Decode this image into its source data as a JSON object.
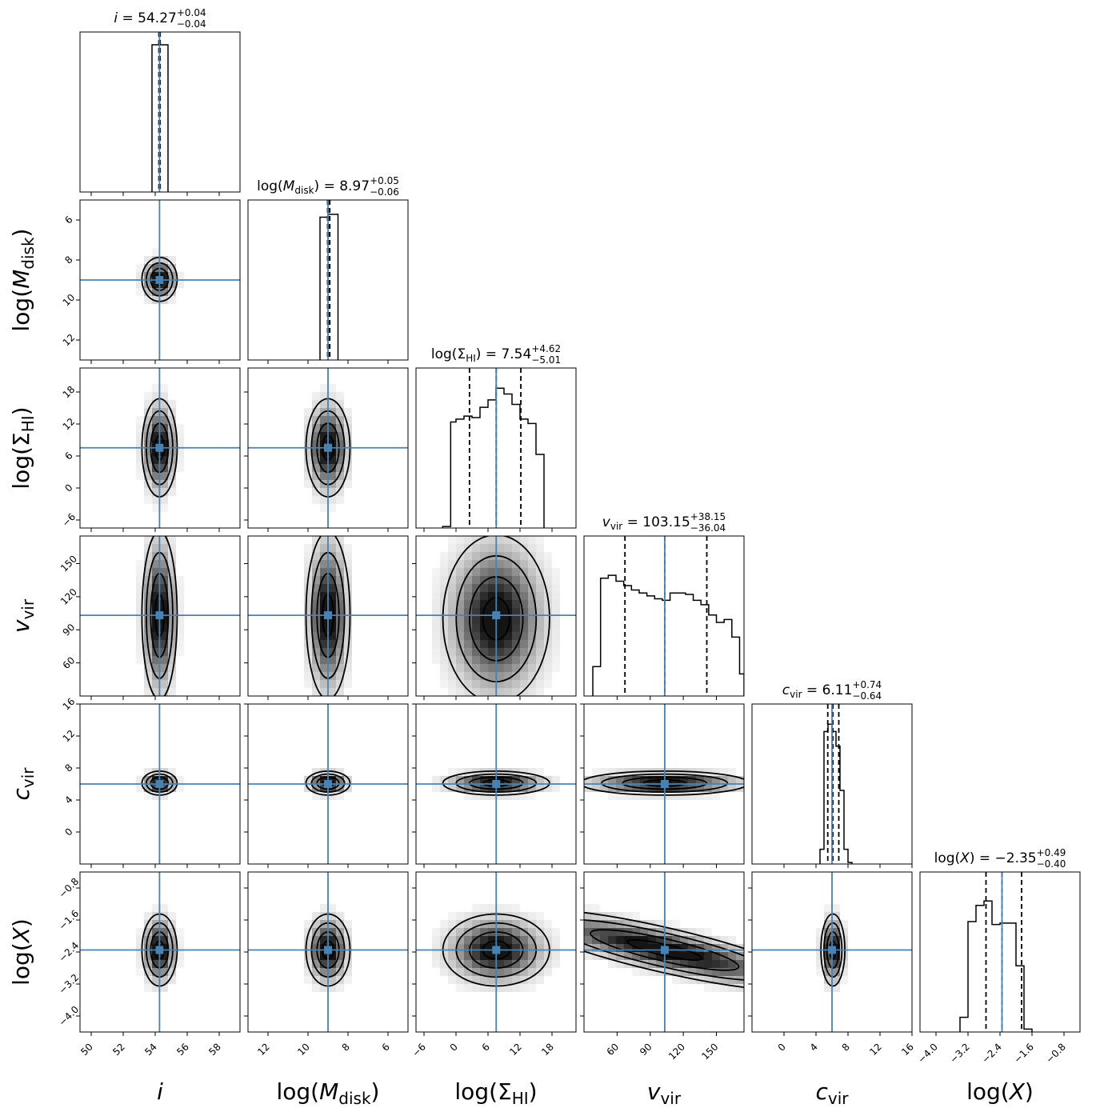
{
  "chart_data": {
    "type": "corner",
    "params": [
      {
        "key": "i",
        "axis_label": "i",
        "axis_sub": "",
        "axis_sym": "i",
        "sym_style": "italic",
        "title_sym": "i",
        "title_sub": "",
        "title_value": "54.27",
        "title_plus": "+0.04",
        "title_minus": "−0.04",
        "range": [
          49.3,
          59.3
        ],
        "ticks": [
          50,
          52,
          54,
          56,
          58
        ],
        "tick_labels": [
          "50",
          "52",
          "54",
          "56",
          "58"
        ],
        "truth": 54.27,
        "q16": 54.23,
        "q50": 54.27,
        "q84": 54.31
      },
      {
        "key": "log_mdisk",
        "axis_label": "log(M_disk)",
        "axis_pre": "log(",
        "axis_sym": "M",
        "axis_sub": "disk",
        "axis_post": ")",
        "sym_style": "italic",
        "title_pre": "log(",
        "title_sym": "M",
        "title_sub": "disk",
        "title_post": ")",
        "title_value": "8.97",
        "title_plus": "+0.05",
        "title_minus": "−0.06",
        "range": [
          13.0,
          5.0
        ],
        "ticks": [
          12,
          10,
          8,
          6
        ],
        "tick_labels": [
          "12",
          "10",
          "8",
          "6"
        ],
        "truth": 9.0,
        "q16": 8.91,
        "q50": 8.97,
        "q84": 9.02
      },
      {
        "key": "log_sigma_hi",
        "axis_label": "log(Σ_HI)",
        "axis_pre": "log(",
        "axis_sym": "Σ",
        "axis_sub": "HI",
        "axis_post": ")",
        "sym_style": "normal",
        "title_pre": "log(",
        "title_sym": "Σ",
        "title_sub": "HI",
        "title_post": ")",
        "title_value": "7.54",
        "title_plus": "+4.62",
        "title_minus": "−5.01",
        "range": [
          -7.5,
          22.5
        ],
        "ticks": [
          -6,
          0,
          6,
          12,
          18
        ],
        "tick_labels": [
          "−6",
          "0",
          "6",
          "12",
          "18"
        ],
        "truth": 7.54,
        "q16": 2.53,
        "q50": 7.54,
        "q84": 12.16
      },
      {
        "key": "v_vir",
        "axis_label": "v_vir",
        "axis_pre": "",
        "axis_sym": "v",
        "axis_sub": "vir",
        "axis_post": "",
        "sym_style": "italic",
        "title_pre": "",
        "title_sym": "v",
        "title_sub": "vir",
        "title_post": "",
        "title_value": "103.15",
        "title_plus": "+38.15",
        "title_minus": "−36.04",
        "range": [
          30,
          175
        ],
        "ticks": [
          60,
          90,
          120,
          150
        ],
        "tick_labels": [
          "60",
          "90",
          "120",
          "150"
        ],
        "truth": 103.15,
        "q16": 67.11,
        "q50": 103.15,
        "q84": 141.3
      },
      {
        "key": "c_vir",
        "axis_label": "c_vir",
        "axis_pre": "",
        "axis_sym": "c",
        "axis_sub": "vir",
        "axis_post": "",
        "sym_style": "italic",
        "title_pre": "",
        "title_sym": "c",
        "title_sub": "vir",
        "title_post": "",
        "title_value": "6.11",
        "title_plus": "+0.74",
        "title_minus": "−0.64",
        "range": [
          -4,
          16
        ],
        "ticks": [
          0,
          4,
          8,
          12,
          16
        ],
        "tick_labels": [
          "0",
          "4",
          "8",
          "12",
          "16"
        ],
        "truth": 6.0,
        "q16": 5.47,
        "q50": 6.11,
        "q84": 6.85
      },
      {
        "key": "log_x",
        "axis_label": "log(X)",
        "axis_pre": "log(",
        "axis_sym": "X",
        "axis_sub": "",
        "axis_post": ")",
        "sym_style": "italic",
        "title_pre": "log(",
        "title_sym": "X",
        "title_sub": "",
        "title_post": ")",
        "title_value": "−2.35",
        "title_plus": "+0.49",
        "title_minus": "−0.40",
        "range": [
          -4.4,
          -0.4
        ],
        "ticks": [
          -4.0,
          -3.2,
          -2.4,
          -1.6,
          -0.8
        ],
        "tick_labels": [
          "−4.0",
          "−3.2",
          "−2.4",
          "−1.6",
          "−0.8"
        ],
        "truth": -2.35,
        "q16": -2.75,
        "q50": -2.35,
        "q84": -1.86
      }
    ],
    "histograms": {
      "i": {
        "bins": [
          53.8,
          54.8
        ],
        "counts": [
          1.0
        ],
        "fill_box": true
      },
      "log_mdisk": {
        "bins": [
          9.4,
          9.0,
          8.5
        ],
        "counts": [
          0.97,
          0.99
        ],
        "fill_box": false
      },
      "log_sigma_hi": {
        "bins": [
          -2.5,
          -1,
          0,
          1.5,
          3,
          4.5,
          6,
          7.5,
          9,
          10.5,
          12,
          13.5,
          15.0,
          16.5
        ],
        "counts": [
          0.01,
          0.72,
          0.74,
          0.76,
          0.75,
          0.82,
          0.87,
          0.95,
          0.91,
          0.84,
          0.74,
          0.71,
          0.5
        ]
      },
      "v_vir": {
        "bins": [
          38,
          45,
          52,
          59,
          66,
          73,
          80,
          87,
          94,
          101,
          108,
          115,
          122,
          129,
          136,
          143,
          150,
          157,
          164,
          171,
          175
        ],
        "counts": [
          0.2,
          0.8,
          0.82,
          0.78,
          0.75,
          0.72,
          0.7,
          0.68,
          0.66,
          0.65,
          0.7,
          0.7,
          0.69,
          0.65,
          0.62,
          0.55,
          0.5,
          0.52,
          0.4,
          0.15
        ]
      },
      "c_vir": {
        "bins": [
          4.5,
          5.0,
          5.5,
          6.0,
          6.5,
          7.0,
          7.5,
          8.0,
          8.5
        ],
        "counts": [
          0.1,
          0.9,
          0.95,
          0.9,
          0.8,
          0.5,
          0.1,
          0.01
        ]
      },
      "log_x": {
        "bins": [
          -3.4,
          -3.2,
          -3.0,
          -2.8,
          -2.6,
          -2.4,
          -2.2,
          -2.0,
          -1.8,
          -1.6
        ],
        "counts": [
          0.1,
          0.75,
          0.86,
          0.89,
          0.73,
          0.74,
          0.74,
          0.45,
          0.02
        ]
      }
    },
    "blobs": [
      {
        "row": 1,
        "col": 0,
        "cx": 54.27,
        "cy": 8.97,
        "sx": 0.55,
        "sy": 0.55,
        "rot": 0,
        "kind": "compact"
      },
      {
        "row": 2,
        "col": 0,
        "cx": 54.27,
        "cy": 7.54,
        "sx": 0.55,
        "sy": 4.6,
        "rot": 0,
        "kind": "tall"
      },
      {
        "row": 2,
        "col": 1,
        "cx": 9.0,
        "cy": 7.54,
        "sx": 0.55,
        "sy": 4.6,
        "rot": 0,
        "kind": "tall"
      },
      {
        "row": 3,
        "col": 0,
        "cx": 54.27,
        "cy": 103,
        "sx": 0.55,
        "sy": 38,
        "rot": 0,
        "kind": "tall"
      },
      {
        "row": 3,
        "col": 1,
        "cx": 9.0,
        "cy": 103,
        "sx": 0.55,
        "sy": 38,
        "rot": 0,
        "kind": "tall"
      },
      {
        "row": 3,
        "col": 2,
        "cx": 7.54,
        "cy": 100,
        "sx": 5.0,
        "sy": 38,
        "rot": 0,
        "kind": "wide"
      },
      {
        "row": 4,
        "col": 0,
        "cx": 54.27,
        "cy": 6.11,
        "sx": 0.55,
        "sy": 0.75,
        "rot": 0,
        "kind": "compact"
      },
      {
        "row": 4,
        "col": 1,
        "cx": 9.0,
        "cy": 6.11,
        "sx": 0.55,
        "sy": 0.75,
        "rot": 0,
        "kind": "compact"
      },
      {
        "row": 4,
        "col": 2,
        "cx": 7.54,
        "cy": 6.11,
        "sx": 5.0,
        "sy": 0.75,
        "rot": 0,
        "kind": "wide"
      },
      {
        "row": 4,
        "col": 3,
        "cx": 103,
        "cy": 6.11,
        "sx": 38,
        "sy": 0.75,
        "rot": 0,
        "kind": "wide"
      },
      {
        "row": 5,
        "col": 0,
        "cx": 54.27,
        "cy": -2.35,
        "sx": 0.55,
        "sy": 0.45,
        "rot": 0,
        "kind": "compact"
      },
      {
        "row": 5,
        "col": 1,
        "cx": 9.0,
        "cy": -2.35,
        "sx": 0.55,
        "sy": 0.45,
        "rot": 0,
        "kind": "compact"
      },
      {
        "row": 5,
        "col": 2,
        "cx": 7.54,
        "cy": -2.35,
        "sx": 5.0,
        "sy": 0.45,
        "rot": 0,
        "kind": "wide"
      },
      {
        "row": 5,
        "col": 3,
        "cx": 103,
        "cy": -2.35,
        "sx": 38,
        "sy": 0.45,
        "rot": -1,
        "kind": "diag"
      },
      {
        "row": 5,
        "col": 4,
        "cx": 6.11,
        "cy": -2.35,
        "sx": 0.75,
        "sy": 0.45,
        "rot": 0,
        "kind": "compact"
      }
    ],
    "colors": {
      "truth": "#4682b4",
      "contour": "#000000",
      "hist": "#000000"
    }
  }
}
